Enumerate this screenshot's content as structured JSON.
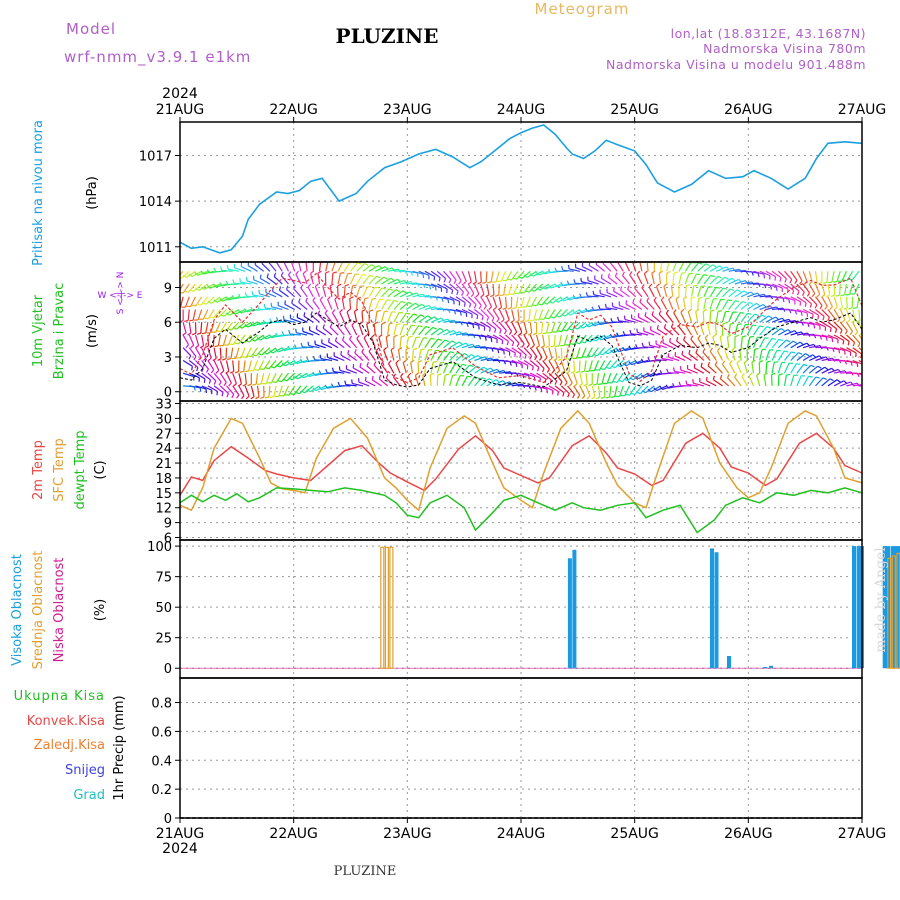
{
  "header": {
    "model_label": "Model",
    "model_name": "wrf-nmm_v3.9.1 e1km",
    "title": "PLUZINE",
    "meteogram_label": "Meteogram",
    "lonlat": "lon,lat (18.8312E, 43.1687N)",
    "elevation": "Nadmorska Visina 780m",
    "model_elevation": "Nadmorska Visina u modelu 901.488m"
  },
  "footer": {
    "station": "PLUZINE",
    "credit": "made by Angel"
  },
  "time_axis": {
    "year": "2024",
    "labels": [
      "21AUG",
      "22AUG",
      "23AUG",
      "24AUG",
      "25AUG",
      "26AUG",
      "27AUG"
    ]
  },
  "colors": {
    "pressure": "#1aa0e0",
    "temp2m": "#e84848",
    "sfc_temp": "#e0a030",
    "dewpt": "#20c020",
    "high_cloud": "#1a9ae0",
    "mid_cloud": "#e0a030",
    "low_cloud": "#d02090",
    "total_precip": "#20c020",
    "conv_precip": "#e84848",
    "frz_precip": "#f08030",
    "snow": "#4040e0",
    "hail": "#20c0c0",
    "wind_calm": "#a020f0"
  },
  "panels": {
    "pressure": {
      "labels": [
        "Pritisak na nivou mora",
        "(hPa)"
      ],
      "ticks": [
        "1011",
        "1014",
        "1017"
      ]
    },
    "wind": {
      "labels": [
        "10m Vjetar",
        "Brzina i Pravac",
        "(m/s)"
      ],
      "compass": "W <-|-> E",
      "ticks": [
        "0",
        "3",
        "6",
        "9"
      ]
    },
    "temp": {
      "labels": [
        "2m Temp",
        "SFC Temp",
        "dewpt Temp",
        "(C)"
      ],
      "ticks": [
        "6",
        "9",
        "12",
        "15",
        "18",
        "21",
        "24",
        "27",
        "30",
        "33"
      ]
    },
    "cloud": {
      "labels": [
        "Visoka Oblacnost",
        "Srednja Oblacnost",
        "Niska Oblacnost",
        "(%)"
      ],
      "ticks": [
        "0",
        "25",
        "50",
        "75",
        "100"
      ]
    },
    "precip": {
      "labels": [
        "Ukupna Kisa",
        "Konvek.Kisa",
        "Zaledj.Kisa",
        "Snijeg",
        "Grad",
        "1hr Precip (mm)"
      ],
      "ticks": [
        "0",
        "0.2",
        "0.4",
        "0.6",
        "0.8"
      ]
    }
  },
  "chart_data": [
    {
      "type": "line",
      "title": "Pritisak na nivou mora",
      "ylabel": "(hPa)",
      "x_unit": "days since 21AUG 00UTC",
      "ylim": [
        1010.0,
        1019.2
      ],
      "series": [
        {
          "name": "Pritisak na nivou mora",
          "x": [
            0,
            0.1,
            0.2,
            0.35,
            0.45,
            0.55,
            0.6,
            0.7,
            0.85,
            0.95,
            1.05,
            1.15,
            1.25,
            1.4,
            1.55,
            1.65,
            1.8,
            1.95,
            2.1,
            2.25,
            2.4,
            2.55,
            2.65,
            2.8,
            2.9,
            3.0,
            3.1,
            3.2,
            3.3,
            3.4,
            3.45,
            3.55,
            3.65,
            3.75,
            3.85,
            4.0,
            4.1,
            4.2,
            4.35,
            4.5,
            4.65,
            4.8,
            4.95,
            5.05,
            5.2,
            5.35,
            5.5,
            5.6,
            5.7,
            5.85,
            6.0
          ],
          "y": [
            1011.3,
            1010.9,
            1011.0,
            1010.6,
            1010.8,
            1011.7,
            1012.8,
            1013.8,
            1014.6,
            1014.5,
            1014.7,
            1015.3,
            1015.5,
            1014.0,
            1014.5,
            1015.3,
            1016.2,
            1016.6,
            1017.1,
            1017.4,
            1016.9,
            1016.2,
            1016.6,
            1017.5,
            1018.1,
            1018.5,
            1018.8,
            1019.0,
            1018.4,
            1017.5,
            1017.1,
            1016.8,
            1017.3,
            1018.0,
            1017.7,
            1017.3,
            1016.4,
            1015.2,
            1014.6,
            1015.1,
            1016.0,
            1015.5,
            1015.6,
            1016.0,
            1015.5,
            1014.8,
            1015.5,
            1016.8,
            1017.8,
            1017.9,
            1017.8
          ]
        }
      ]
    },
    {
      "type": "line",
      "title": "10m Vjetar Brzina i Pravac",
      "ylabel": "(m/s)",
      "x_unit": "days since 21AUG 00UTC",
      "ylim": [
        -0.8,
        11.2
      ],
      "series": [
        {
          "name": "Brzina",
          "x": [
            0,
            0.1,
            0.2,
            0.3,
            0.4,
            0.55,
            0.7,
            0.8,
            0.9,
            1.0,
            1.1,
            1.2,
            1.3,
            1.4,
            1.5,
            1.6,
            1.7,
            1.8,
            1.9,
            2.0,
            2.1,
            2.2,
            2.4,
            2.6,
            2.8,
            3.0,
            3.2,
            3.4,
            3.5,
            3.6,
            3.7,
            3.8,
            3.95,
            4.05,
            4.15,
            4.25,
            4.4,
            4.55,
            4.65,
            4.75,
            4.85,
            5.0,
            5.1,
            5.25,
            5.4,
            5.55,
            5.65,
            5.75,
            5.9,
            6.0
          ],
          "y": [
            1.2,
            1.0,
            2.0,
            4.6,
            5.4,
            4.2,
            5.2,
            6.0,
            6.2,
            5.8,
            6.0,
            6.8,
            6.2,
            5.6,
            6.2,
            5.8,
            4.2,
            1.0,
            0.6,
            0.4,
            0.6,
            2.0,
            2.6,
            1.2,
            0.6,
            0.8,
            0.4,
            1.8,
            4.8,
            4.4,
            4.8,
            4.0,
            0.8,
            0.5,
            1.0,
            3.2,
            4.0,
            3.8,
            4.2,
            4.0,
            3.4,
            3.8,
            4.6,
            5.6,
            6.0,
            6.4,
            6.0,
            6.2,
            6.8,
            5.4
          ]
        },
        {
          "name": "Udari",
          "x": [
            0,
            0.1,
            0.2,
            0.3,
            0.4,
            0.55,
            0.7,
            0.8,
            0.9,
            1.0,
            1.1,
            1.2,
            1.3,
            1.4,
            1.5,
            1.6,
            1.7,
            1.8,
            1.9,
            2.0,
            2.1,
            2.2,
            2.4,
            2.6,
            2.8,
            3.0,
            3.2,
            3.4,
            3.5,
            3.6,
            3.7,
            3.8,
            3.95,
            4.05,
            4.15,
            4.25,
            4.4,
            4.55,
            4.65,
            4.75,
            4.85,
            5.0,
            5.1,
            5.25,
            5.4,
            5.55,
            5.65,
            5.75,
            5.9,
            6.0
          ],
          "y": [
            2.0,
            1.5,
            3.2,
            6.2,
            7.5,
            6.0,
            7.6,
            8.8,
            9.8,
            9.6,
            9.4,
            10.2,
            9.0,
            8.0,
            8.6,
            7.8,
            5.8,
            2.0,
            1.2,
            0.8,
            1.2,
            3.2,
            3.8,
            2.2,
            1.2,
            1.4,
            0.8,
            3.0,
            6.8,
            6.2,
            6.6,
            5.6,
            1.6,
            0.9,
            1.8,
            4.8,
            5.8,
            5.6,
            6.0,
            5.8,
            5.0,
            5.6,
            6.6,
            8.0,
            9.0,
            9.6,
            9.2,
            9.2,
            9.8,
            7.4
          ]
        }
      ]
    },
    {
      "type": "line",
      "title": "Temperatura",
      "ylabel": "(C)",
      "x_unit": "days since 21AUG 00UTC",
      "ylim": [
        5.5,
        33.5
      ],
      "series": [
        {
          "name": "2m Temp",
          "x": [
            0,
            0.1,
            0.2,
            0.3,
            0.45,
            0.6,
            0.75,
            0.85,
            1.0,
            1.15,
            1.3,
            1.45,
            1.6,
            1.75,
            1.85,
            2.0,
            2.15,
            2.25,
            2.45,
            2.6,
            2.75,
            2.85,
            3.0,
            3.15,
            3.25,
            3.45,
            3.6,
            3.75,
            3.85,
            4.0,
            4.15,
            4.25,
            4.45,
            4.6,
            4.75,
            4.85,
            5.0,
            5.15,
            5.25,
            5.45,
            5.6,
            5.75,
            5.85,
            6.0
          ],
          "y": [
            14.5,
            18.2,
            17.5,
            21.5,
            24.3,
            22.0,
            19.5,
            18.8,
            18.0,
            17.5,
            20.5,
            23.5,
            24.5,
            21.0,
            19.0,
            17.2,
            15.5,
            17.8,
            23.8,
            26.5,
            23.5,
            20.0,
            18.5,
            17.0,
            18.0,
            24.5,
            26.5,
            23.0,
            20.0,
            18.8,
            16.5,
            17.5,
            25.0,
            27.0,
            24.0,
            20.2,
            19.0,
            16.5,
            17.8,
            25.0,
            27.0,
            24.0,
            20.5,
            19.0
          ]
        },
        {
          "name": "SFC Temp",
          "x": [
            0,
            0.1,
            0.2,
            0.3,
            0.45,
            0.55,
            0.7,
            0.8,
            0.9,
            1.0,
            1.1,
            1.2,
            1.35,
            1.5,
            1.65,
            1.8,
            1.9,
            2.0,
            2.1,
            2.2,
            2.35,
            2.5,
            2.6,
            2.75,
            2.85,
            3.0,
            3.1,
            3.2,
            3.35,
            3.5,
            3.6,
            3.75,
            3.85,
            4.0,
            4.1,
            4.2,
            4.35,
            4.5,
            4.6,
            4.75,
            4.9,
            5.0,
            5.1,
            5.2,
            5.35,
            5.5,
            5.6,
            5.75,
            5.85,
            6.0
          ],
          "y": [
            12.5,
            11.5,
            16.0,
            24.0,
            30.0,
            29.0,
            22.0,
            17.0,
            15.8,
            15.5,
            15.0,
            22.0,
            28.0,
            30.0,
            26.0,
            18.0,
            16.0,
            13.5,
            11.5,
            20.0,
            28.0,
            30.5,
            29.0,
            21.0,
            16.0,
            13.5,
            12.0,
            19.0,
            28.0,
            31.5,
            29.0,
            21.0,
            16.5,
            13.0,
            12.0,
            19.0,
            29.0,
            31.5,
            30.0,
            21.0,
            16.0,
            14.0,
            15.0,
            20.0,
            29.0,
            31.5,
            30.5,
            24.0,
            18.0,
            17.0
          ]
        },
        {
          "name": "dewpt Temp",
          "x": [
            0,
            0.1,
            0.2,
            0.3,
            0.4,
            0.5,
            0.6,
            0.7,
            0.85,
            1.0,
            1.15,
            1.3,
            1.45,
            1.6,
            1.8,
            1.9,
            2.0,
            2.1,
            2.2,
            2.35,
            2.5,
            2.6,
            2.75,
            2.85,
            3.0,
            3.15,
            3.3,
            3.45,
            3.55,
            3.7,
            3.85,
            4.0,
            4.1,
            4.25,
            4.4,
            4.55,
            4.7,
            4.8,
            4.95,
            5.1,
            5.25,
            5.4,
            5.55,
            5.7,
            5.85,
            6.0
          ],
          "y": [
            13.0,
            14.5,
            13.2,
            14.5,
            13.5,
            14.8,
            13.2,
            14.0,
            16.0,
            15.8,
            15.5,
            15.2,
            16.0,
            15.5,
            14.5,
            13.0,
            10.5,
            10.0,
            13.0,
            14.5,
            12.0,
            7.5,
            11.0,
            13.5,
            14.5,
            13.0,
            11.5,
            13.0,
            12.0,
            11.5,
            12.5,
            13.0,
            10.0,
            11.5,
            12.5,
            7.0,
            9.5,
            12.5,
            14.0,
            13.0,
            15.0,
            14.5,
            15.5,
            15.0,
            16.0,
            15.0
          ]
        }
      ]
    },
    {
      "type": "bar",
      "title": "Oblacnost",
      "ylabel": "(%)",
      "x_unit": "days since 21AUG 00UTC",
      "ylim": [
        -8,
        105
      ],
      "series": [
        {
          "name": "Visoka Oblacnost",
          "x": [
            3.43,
            3.47,
            4.68,
            4.72,
            4.83,
            5.15,
            5.2,
            5.93,
            5.97,
            6.0,
            6.2,
            6.23,
            6.27,
            6.3,
            6.33
          ],
          "y": [
            90,
            97,
            98,
            95,
            10,
            1,
            2,
            100,
            100,
            100,
            100,
            100,
            100,
            100,
            100
          ]
        },
        {
          "name": "Srednja Oblacnost",
          "x": [
            1.78,
            1.82,
            1.86,
            6.24,
            6.28,
            6.32
          ],
          "y": [
            99,
            99,
            99,
            90,
            92,
            94
          ]
        },
        {
          "name": "Niska Oblacnost",
          "x": [
            6.35
          ],
          "y": [
            0
          ]
        }
      ]
    },
    {
      "type": "bar",
      "title": "1hr Precip",
      "ylabel": "1hr Precip (mm)",
      "x_unit": "days since 21AUG 00UTC",
      "ylim": [
        0,
        0.97
      ],
      "series": [
        {
          "name": "Ukupna Kisa",
          "x": [],
          "y": []
        },
        {
          "name": "Konvek.Kisa",
          "x": [],
          "y": []
        },
        {
          "name": "Zaledj.Kisa",
          "x": [],
          "y": []
        },
        {
          "name": "Snijeg",
          "x": [],
          "y": []
        },
        {
          "name": "Grad",
          "x": [],
          "y": []
        }
      ]
    }
  ]
}
